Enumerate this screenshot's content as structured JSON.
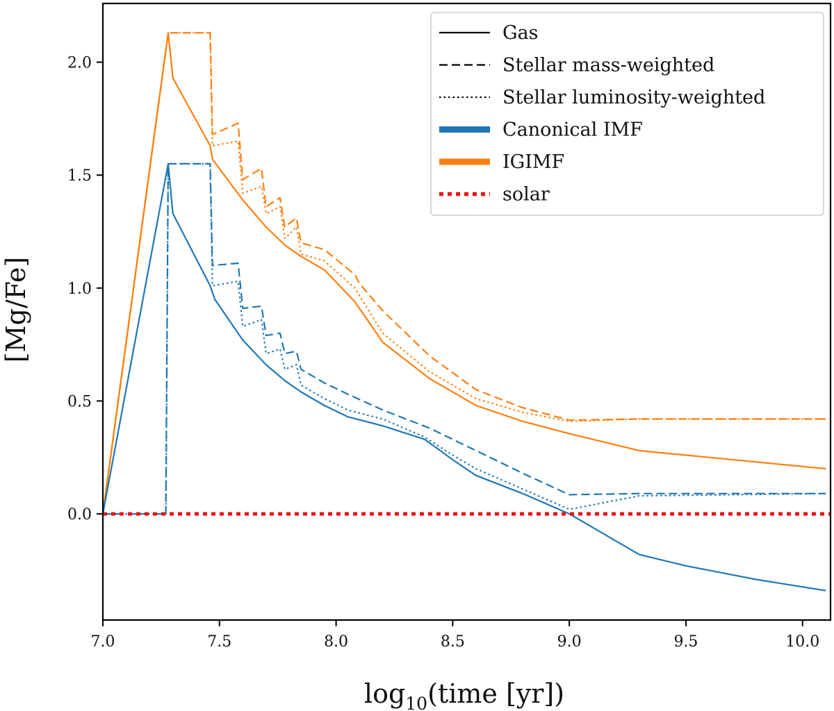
{
  "chart_data": {
    "type": "line",
    "title": "",
    "xlabel_base": "log",
    "xlabel_sub": "10",
    "xlabel_rest": "(time [yr])",
    "ylabel": "[Mg/Fe]",
    "xlim": [
      7.0,
      10.12
    ],
    "ylim": [
      -0.47,
      2.26
    ],
    "xticks": [
      7.0,
      7.5,
      8.0,
      8.5,
      9.0,
      9.5,
      10.0
    ],
    "xtick_labels": [
      "7.0",
      "7.5",
      "8.0",
      "8.5",
      "9.0",
      "9.5",
      "10.0"
    ],
    "yticks": [
      0.0,
      0.5,
      1.0,
      1.5,
      2.0
    ],
    "ytick_labels": [
      "0.0",
      "0.5",
      "1.0",
      "1.5",
      "2.0"
    ],
    "legend": {
      "placement": "top-right",
      "entries": [
        {
          "label": "Gas",
          "style": "solid",
          "color": "#000000"
        },
        {
          "label": "Stellar mass-weighted",
          "style": "dashed",
          "color": "#000000"
        },
        {
          "label": "Stellar luminosity-weighted",
          "style": "dotted",
          "color": "#000000"
        },
        {
          "label": "Canonical IMF",
          "style": "thick",
          "color": "#1f77b4"
        },
        {
          "label": "IGIMF",
          "style": "thick",
          "color": "#ff7f0e"
        },
        {
          "label": "solar",
          "style": "reddot",
          "color": "#ee1111"
        }
      ]
    },
    "series": [
      {
        "name": "IGIMF gas",
        "color": "#ff7f0e",
        "style": "solid",
        "points": [
          [
            7.0,
            0.0
          ],
          [
            7.28,
            2.13
          ],
          [
            7.3,
            1.93
          ],
          [
            7.46,
            1.63
          ],
          [
            7.47,
            1.57
          ],
          [
            7.6,
            1.39
          ],
          [
            7.7,
            1.27
          ],
          [
            7.78,
            1.19
          ],
          [
            7.85,
            1.14
          ],
          [
            7.95,
            1.08
          ],
          [
            8.08,
            0.94
          ],
          [
            8.2,
            0.76
          ],
          [
            8.4,
            0.6
          ],
          [
            8.6,
            0.48
          ],
          [
            8.8,
            0.41
          ],
          [
            9.0,
            0.355
          ],
          [
            9.3,
            0.28
          ],
          [
            9.5,
            0.26
          ],
          [
            9.8,
            0.23
          ],
          [
            10.1,
            0.2
          ]
        ]
      },
      {
        "name": "IGIMF stellar mass-weighted",
        "color": "#ff7f0e",
        "style": "dashed",
        "points": [
          [
            7.0,
            0.0
          ],
          [
            7.28,
            2.13
          ],
          [
            7.3,
            2.13
          ],
          [
            7.46,
            2.13
          ],
          [
            7.47,
            1.68
          ],
          [
            7.58,
            1.73
          ],
          [
            7.6,
            1.48
          ],
          [
            7.68,
            1.53
          ],
          [
            7.7,
            1.36
          ],
          [
            7.76,
            1.4
          ],
          [
            7.78,
            1.27
          ],
          [
            7.83,
            1.31
          ],
          [
            7.85,
            1.2
          ],
          [
            7.95,
            1.17
          ],
          [
            8.08,
            1.06
          ],
          [
            8.1,
            1.02
          ],
          [
            8.2,
            0.9
          ],
          [
            8.4,
            0.7
          ],
          [
            8.6,
            0.55
          ],
          [
            8.8,
            0.47
          ],
          [
            9.0,
            0.415
          ],
          [
            9.3,
            0.42
          ],
          [
            9.5,
            0.42
          ],
          [
            10.1,
            0.42
          ]
        ]
      },
      {
        "name": "IGIMF stellar luminosity-weighted",
        "color": "#ff7f0e",
        "style": "dotted",
        "points": [
          [
            7.0,
            0.0
          ],
          [
            7.28,
            2.13
          ],
          [
            7.3,
            2.13
          ],
          [
            7.46,
            2.13
          ],
          [
            7.47,
            1.63
          ],
          [
            7.58,
            1.65
          ],
          [
            7.6,
            1.42
          ],
          [
            7.68,
            1.45
          ],
          [
            7.7,
            1.33
          ],
          [
            7.76,
            1.36
          ],
          [
            7.78,
            1.22
          ],
          [
            7.83,
            1.27
          ],
          [
            7.85,
            1.15
          ],
          [
            7.95,
            1.12
          ],
          [
            8.08,
            1.0
          ],
          [
            8.2,
            0.8
          ],
          [
            8.4,
            0.63
          ],
          [
            8.6,
            0.51
          ],
          [
            8.8,
            0.45
          ],
          [
            9.0,
            0.41
          ],
          [
            9.3,
            0.42
          ],
          [
            10.1,
            0.42
          ]
        ]
      },
      {
        "name": "Canonical IMF gas",
        "color": "#1f77b4",
        "style": "solid",
        "points": [
          [
            7.0,
            0.0
          ],
          [
            7.28,
            1.55
          ],
          [
            7.3,
            1.33
          ],
          [
            7.46,
            1.01
          ],
          [
            7.48,
            0.95
          ],
          [
            7.6,
            0.77
          ],
          [
            7.7,
            0.66
          ],
          [
            7.78,
            0.59
          ],
          [
            7.85,
            0.54
          ],
          [
            7.95,
            0.48
          ],
          [
            8.05,
            0.43
          ],
          [
            8.2,
            0.39
          ],
          [
            8.38,
            0.33
          ],
          [
            8.5,
            0.24
          ],
          [
            8.6,
            0.17
          ],
          [
            8.8,
            0.09
          ],
          [
            9.0,
            0.0
          ],
          [
            9.3,
            -0.18
          ],
          [
            9.5,
            -0.23
          ],
          [
            9.8,
            -0.29
          ],
          [
            10.1,
            -0.34
          ]
        ]
      },
      {
        "name": "Canonical IMF stellar mass-weighted",
        "color": "#1f77b4",
        "style": "dashed",
        "points": [
          [
            7.0,
            0.0
          ],
          [
            7.27,
            0.0
          ],
          [
            7.28,
            1.55
          ],
          [
            7.46,
            1.55
          ],
          [
            7.47,
            1.1
          ],
          [
            7.58,
            1.11
          ],
          [
            7.6,
            0.91
          ],
          [
            7.68,
            0.92
          ],
          [
            7.7,
            0.79
          ],
          [
            7.76,
            0.8
          ],
          [
            7.78,
            0.71
          ],
          [
            7.83,
            0.72
          ],
          [
            7.85,
            0.64
          ],
          [
            7.95,
            0.58
          ],
          [
            8.05,
            0.53
          ],
          [
            8.2,
            0.46
          ],
          [
            8.4,
            0.38
          ],
          [
            8.6,
            0.28
          ],
          [
            8.8,
            0.18
          ],
          [
            9.0,
            0.085
          ],
          [
            9.3,
            0.09
          ],
          [
            10.1,
            0.09
          ]
        ]
      },
      {
        "name": "Canonical IMF stellar luminosity-weighted",
        "color": "#1f77b4",
        "style": "dotted",
        "points": [
          [
            7.0,
            0.0
          ],
          [
            7.27,
            0.0
          ],
          [
            7.28,
            1.55
          ],
          [
            7.46,
            1.55
          ],
          [
            7.47,
            1.01
          ],
          [
            7.58,
            1.03
          ],
          [
            7.6,
            0.83
          ],
          [
            7.68,
            0.86
          ],
          [
            7.7,
            0.71
          ],
          [
            7.76,
            0.73
          ],
          [
            7.78,
            0.64
          ],
          [
            7.83,
            0.66
          ],
          [
            7.85,
            0.57
          ],
          [
            7.95,
            0.51
          ],
          [
            8.05,
            0.46
          ],
          [
            8.2,
            0.42
          ],
          [
            8.38,
            0.34
          ],
          [
            8.5,
            0.26
          ],
          [
            8.6,
            0.2
          ],
          [
            8.8,
            0.11
          ],
          [
            9.0,
            0.02
          ],
          [
            9.3,
            0.08
          ],
          [
            10.1,
            0.09
          ]
        ]
      },
      {
        "name": "solar",
        "color": "#ee1111",
        "style": "reddot",
        "points": [
          [
            7.0,
            0.0
          ],
          [
            10.12,
            0.0
          ]
        ]
      }
    ]
  }
}
